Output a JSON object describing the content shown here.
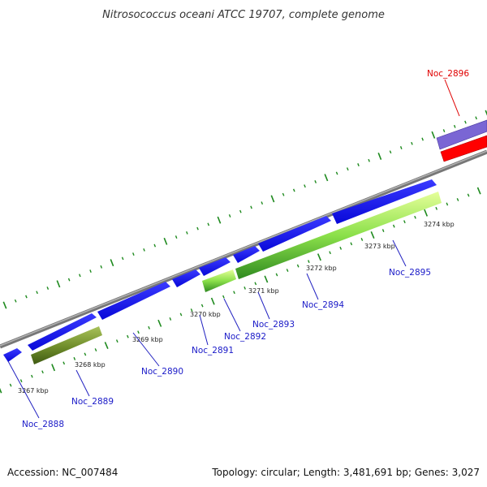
{
  "title": "Nitrosococcus oceani ATCC 19707, complete genome",
  "footer": {
    "accession": "Accession: NC_007484",
    "summary": "Topology: circular; Length: 3,481,691 bp; Genes: 3,027"
  },
  "colors": {
    "backbone": "#8a8a8a",
    "forward_gene": "#1a1aff",
    "label_blue": "#1a1ac8",
    "label_red": "#e00000",
    "tick_green": "#1e8a1e",
    "rrna_lime": "#7fdc3c",
    "rrna_olive": "#6e8c2a",
    "trna_purple": "#7060d0",
    "trna_red": "#ff0000"
  },
  "ticks": [
    {
      "label": "3267 kbp"
    },
    {
      "label": "3268 kbp"
    },
    {
      "label": "3269 kbp"
    },
    {
      "label": "3270 kbp"
    },
    {
      "label": "3271 kbp"
    },
    {
      "label": "3272 kbp"
    },
    {
      "label": "3273 kbp"
    },
    {
      "label": "3274 kbp"
    }
  ],
  "genes": [
    {
      "label": "Noc_2888",
      "color": "blue"
    },
    {
      "label": "Noc_2889",
      "color": "blue"
    },
    {
      "label": "Noc_2890",
      "color": "blue"
    },
    {
      "label": "Noc_2891",
      "color": "blue"
    },
    {
      "label": "Noc_2892",
      "color": "blue"
    },
    {
      "label": "Noc_2893",
      "color": "blue"
    },
    {
      "label": "Noc_2894",
      "color": "blue"
    },
    {
      "label": "Noc_2895",
      "color": "blue"
    },
    {
      "label": "Noc_2896",
      "color": "red"
    }
  ]
}
